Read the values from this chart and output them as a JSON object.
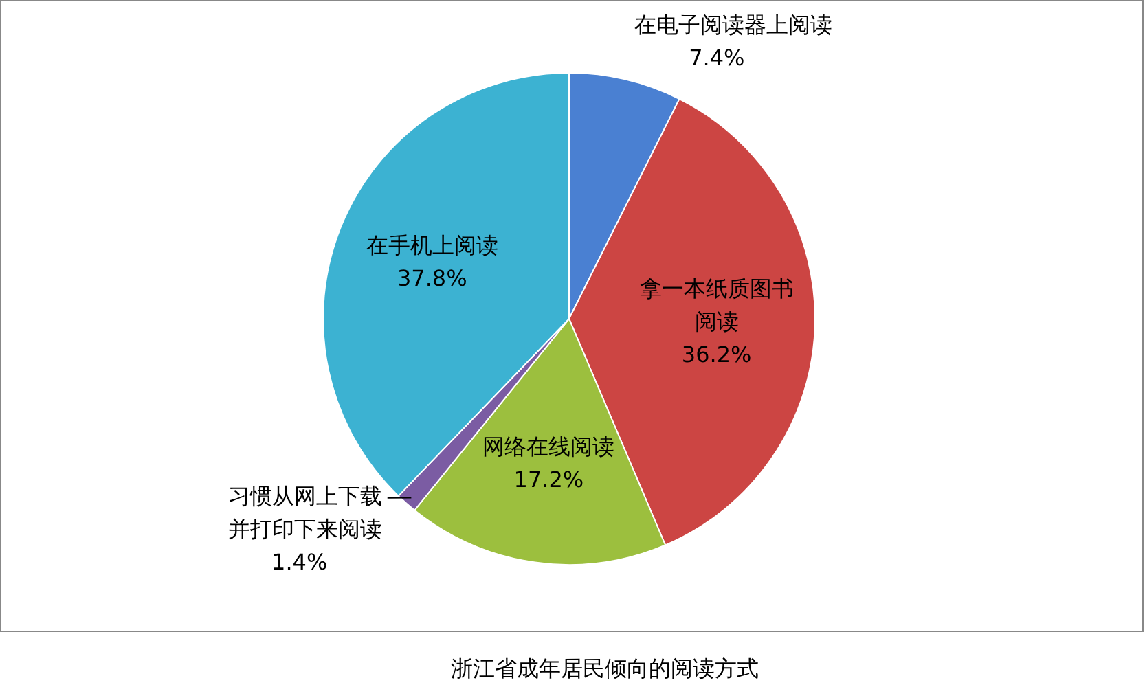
{
  "chart_data": {
    "type": "pie",
    "title": "浙江省成年居民倾向的阅读方式",
    "categories": [
      "在电子阅读器上阅读",
      "拿一本纸质图书阅读",
      "网络在线阅读",
      "习惯从网上下载并打印下来阅读",
      "在手机上阅读"
    ],
    "values": [
      7.4,
      36.2,
      17.2,
      1.4,
      37.8
    ],
    "value_labels": [
      "7.4%",
      "36.2%",
      "17.2%",
      "1.4%",
      "37.8%"
    ],
    "colors": [
      "#4a80d2",
      "#cc4543",
      "#9cbf3e",
      "#7b5ca3",
      "#3cb2d2"
    ]
  }
}
